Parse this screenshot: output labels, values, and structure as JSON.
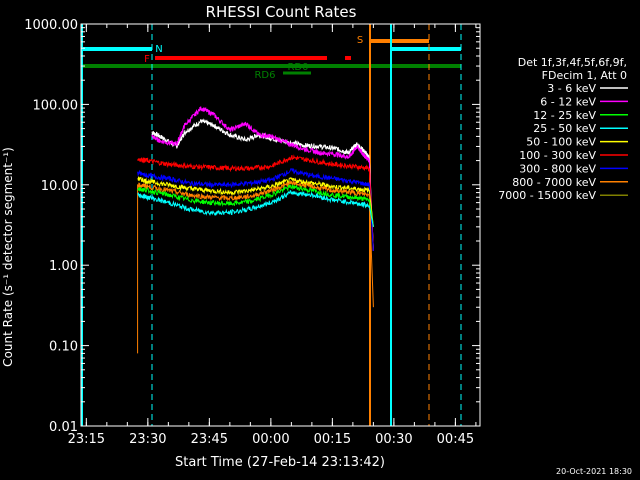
{
  "chart_data": {
    "type": "line",
    "title": "RHESSI Count Rates",
    "xlabel": "Start Time (27-Feb-14 23:13:42)",
    "ylabel": "Count Rate (s⁻¹ detector segment⁻¹)",
    "y_scale": "log",
    "ylim": [
      0.01,
      1000
    ],
    "y_ticks": [
      "0.01",
      "0.10",
      "1.00",
      "10.00",
      "100.00",
      "1000.00"
    ],
    "xlim": [
      "23:13:42",
      "00:51:00"
    ],
    "x_ticks": [
      "23:15",
      "23:30",
      "23:45",
      "00:00",
      "00:15",
      "00:30",
      "00:45"
    ],
    "timestamp": "20-Oct-2021 18:30",
    "legend": {
      "position": "right",
      "header": [
        "Det 1f,3f,4f,5f,6f,9f,",
        "FDecim 1, Att 0"
      ],
      "entries": [
        {
          "label": "3 - 6 keV",
          "color": "#ffffff"
        },
        {
          "label": "6 - 12 keV",
          "color": "#ff00ff"
        },
        {
          "label": "12 - 25 keV",
          "color": "#00ff00"
        },
        {
          "label": "25 - 50 keV",
          "color": "#00ffff"
        },
        {
          "label": "50 - 100 keV",
          "color": "#ffff00"
        },
        {
          "label": "100 - 300 keV",
          "color": "#ff0000"
        },
        {
          "label": "300 - 800 keV",
          "color": "#0000ff"
        },
        {
          "label": "800 - 7000 keV",
          "color": "#ff8000"
        },
        {
          "label": "7000 - 15000 keV",
          "color": "#808000"
        }
      ]
    },
    "flag_labels": {
      "N": "N",
      "F": "F",
      "S": "S",
      "RD0": "RD0",
      "RD6": "RD6"
    },
    "flag_colors": {
      "N": "#00ffff",
      "F": "#ff0000",
      "S": "#ff8000",
      "RD": "#008000"
    },
    "series": [
      {
        "name": "3 - 6 keV",
        "color": "#ffffff",
        "x": [
          "23:31:00",
          "23:33:00",
          "23:37:00",
          "23:39:00",
          "23:43:00",
          "23:46:00",
          "23:50:00",
          "23:54:00",
          "23:57:00",
          "00:00:00",
          "00:04:00",
          "00:08:00",
          "00:12:00",
          "00:16:00",
          "00:19:00",
          "00:21:00",
          "00:22:30",
          "00:24:00",
          "00:25:00"
        ],
        "y": [
          45,
          40,
          30,
          45,
          62,
          55,
          42,
          36,
          42,
          38,
          34,
          31,
          30,
          28,
          25,
          32,
          27,
          22,
          1.5
        ]
      },
      {
        "name": "6 - 12 keV",
        "color": "#ff00ff",
        "x": [
          "23:31:00",
          "23:33:00",
          "23:37:00",
          "23:39:00",
          "23:43:00",
          "23:46:00",
          "23:50:00",
          "23:54:00",
          "23:57:00",
          "00:00:00",
          "00:04:00",
          "00:08:00",
          "00:12:00",
          "00:16:00",
          "00:19:00",
          "00:21:00",
          "00:22:30",
          "00:24:00",
          "00:25:00"
        ],
        "y": [
          40,
          35,
          32,
          55,
          90,
          75,
          48,
          58,
          42,
          40,
          33,
          28,
          25,
          24,
          22,
          30,
          24,
          20,
          1.5
        ]
      },
      {
        "name": "100 - 300 keV",
        "color": "#ff0000",
        "x": [
          "23:27:30",
          "23:30:00",
          "23:35:00",
          "23:40:00",
          "23:45:00",
          "23:50:00",
          "23:55:00",
          "00:00:00",
          "00:05:00",
          "00:10:00",
          "00:15:00",
          "00:20:00",
          "00:24:00",
          "00:25:00"
        ],
        "y": [
          21,
          20,
          18,
          17,
          16.5,
          16,
          16,
          17,
          22,
          20,
          18,
          17,
          16,
          1.5
        ]
      },
      {
        "name": "300 - 800 keV",
        "color": "#0000ff",
        "x": [
          "23:27:30",
          "23:30:00",
          "23:35:00",
          "23:40:00",
          "23:45:00",
          "23:50:00",
          "23:55:00",
          "00:00:00",
          "00:05:00",
          "00:10:00",
          "00:15:00",
          "00:20:00",
          "00:24:00",
          "00:25:00"
        ],
        "y": [
          14,
          13,
          12,
          10.5,
          10,
          10,
          10.5,
          11.5,
          15,
          13,
          12,
          11,
          10,
          1.5
        ]
      },
      {
        "name": "50 - 100 keV",
        "color": "#ffff00",
        "x": [
          "23:27:30",
          "23:30:00",
          "23:35:00",
          "23:40:00",
          "23:45:00",
          "23:50:00",
          "23:55:00",
          "00:00:00",
          "00:05:00",
          "00:10:00",
          "00:15:00",
          "00:20:00",
          "00:24:00",
          "00:25:00"
        ],
        "y": [
          12,
          11,
          10,
          9,
          8.5,
          8,
          8.5,
          9.5,
          11.5,
          10.5,
          9.5,
          9,
          8.5,
          3
        ]
      },
      {
        "name": "800 - 7000 keV",
        "color": "#ff8000",
        "x": [
          "23:27:30",
          "23:30:00",
          "23:35:00",
          "23:40:00",
          "23:45:00",
          "23:50:00",
          "23:55:00",
          "00:00:00",
          "00:05:00",
          "00:10:00",
          "00:15:00",
          "00:20:00",
          "00:24:00",
          "00:25:00"
        ],
        "y": [
          10,
          9.5,
          8.5,
          7.5,
          7,
          6.8,
          7.2,
          8.5,
          10.5,
          9.5,
          8.5,
          8,
          7.5,
          0.3
        ]
      },
      {
        "name": "12 - 25 keV",
        "color": "#00ff00",
        "x": [
          "23:27:30",
          "23:30:00",
          "23:35:00",
          "23:40:00",
          "23:45:00",
          "23:50:00",
          "23:55:00",
          "00:00:00",
          "00:05:00",
          "00:10:00",
          "00:15:00",
          "00:20:00",
          "00:24:00",
          "00:25:00"
        ],
        "y": [
          9,
          8.5,
          7.5,
          6.5,
          6,
          5.8,
          6.2,
          7.5,
          9.5,
          8.5,
          7.5,
          7,
          6.5,
          3
        ]
      },
      {
        "name": "25 - 50 keV",
        "color": "#00ffff",
        "x": [
          "23:27:30",
          "23:30:00",
          "23:35:00",
          "23:40:00",
          "23:45:00",
          "23:50:00",
          "23:55:00",
          "00:00:00",
          "00:05:00",
          "00:10:00",
          "00:15:00",
          "00:20:00",
          "00:24:00",
          "00:25:00"
        ],
        "y": [
          7.5,
          7,
          6,
          5,
          4.5,
          4.5,
          5,
          6,
          8,
          7.5,
          6.5,
          6,
          5.5,
          3
        ]
      }
    ]
  }
}
